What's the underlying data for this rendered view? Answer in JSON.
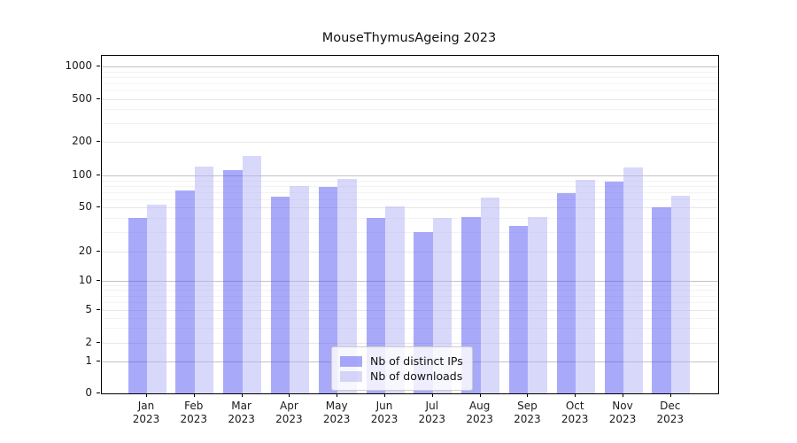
{
  "chart_data": {
    "type": "bar",
    "title": "MouseThymusAgeing 2023",
    "categories": [
      {
        "month": "Jan",
        "year": "2023"
      },
      {
        "month": "Feb",
        "year": "2023"
      },
      {
        "month": "Mar",
        "year": "2023"
      },
      {
        "month": "Apr",
        "year": "2023"
      },
      {
        "month": "May",
        "year": "2023"
      },
      {
        "month": "Jun",
        "year": "2023"
      },
      {
        "month": "Jul",
        "year": "2023"
      },
      {
        "month": "Aug",
        "year": "2023"
      },
      {
        "month": "Sep",
        "year": "2023"
      },
      {
        "month": "Oct",
        "year": "2023"
      },
      {
        "month": "Nov",
        "year": "2023"
      },
      {
        "month": "Dec",
        "year": "2023"
      }
    ],
    "series": [
      {
        "name": "Nb of distinct IPs",
        "color": "rgba(83,83,245,0.5)",
        "values": [
          40,
          72,
          112,
          63,
          78,
          40,
          30,
          41,
          34,
          68,
          88,
          50
        ]
      },
      {
        "name": "Nb of downloads",
        "color": "rgba(177,177,245,0.5)",
        "values": [
          53,
          120,
          150,
          79,
          93,
          51,
          40,
          62,
          41,
          91,
          118,
          65
        ]
      }
    ],
    "y_axis": {
      "scale": "log-with-zero",
      "ylim": [
        0,
        1000
      ],
      "ticks": [
        {
          "label": "1000",
          "value": 1000,
          "y": 12
        },
        {
          "label": "500",
          "value": 500,
          "y": 48.7
        },
        {
          "label": "200",
          "value": 200,
          "y": 97
        },
        {
          "label": "100",
          "value": 100,
          "y": 135
        },
        {
          "label": "50",
          "value": 50,
          "y": 171.3
        },
        {
          "label": "20",
          "value": 20,
          "y": 220.7
        },
        {
          "label": "10",
          "value": 10,
          "y": 253.7
        },
        {
          "label": "5",
          "value": 5,
          "y": 287
        },
        {
          "label": "2",
          "value": 2,
          "y": 323.7
        },
        {
          "label": "1",
          "value": 1,
          "y": 345
        },
        {
          "label": "0",
          "value": 0,
          "y": 381
        }
      ],
      "decade_values": [
        1000,
        100,
        10,
        1
      ],
      "minor_values": [
        900,
        800,
        700,
        600,
        400,
        300,
        90,
        80,
        70,
        60,
        40,
        30,
        9,
        8,
        7,
        6,
        4,
        3
      ]
    },
    "grid": true,
    "legend": {
      "position": "bottom-center",
      "items": [
        "Nb of distinct IPs",
        "Nb of downloads"
      ]
    },
    "colors": {
      "grid_decade": "#c3c3c3",
      "grid_mid": "#e7e7e7",
      "grid_minor": "#f3f3f3",
      "spine": "#000000",
      "text": "#1a1a1a"
    }
  }
}
